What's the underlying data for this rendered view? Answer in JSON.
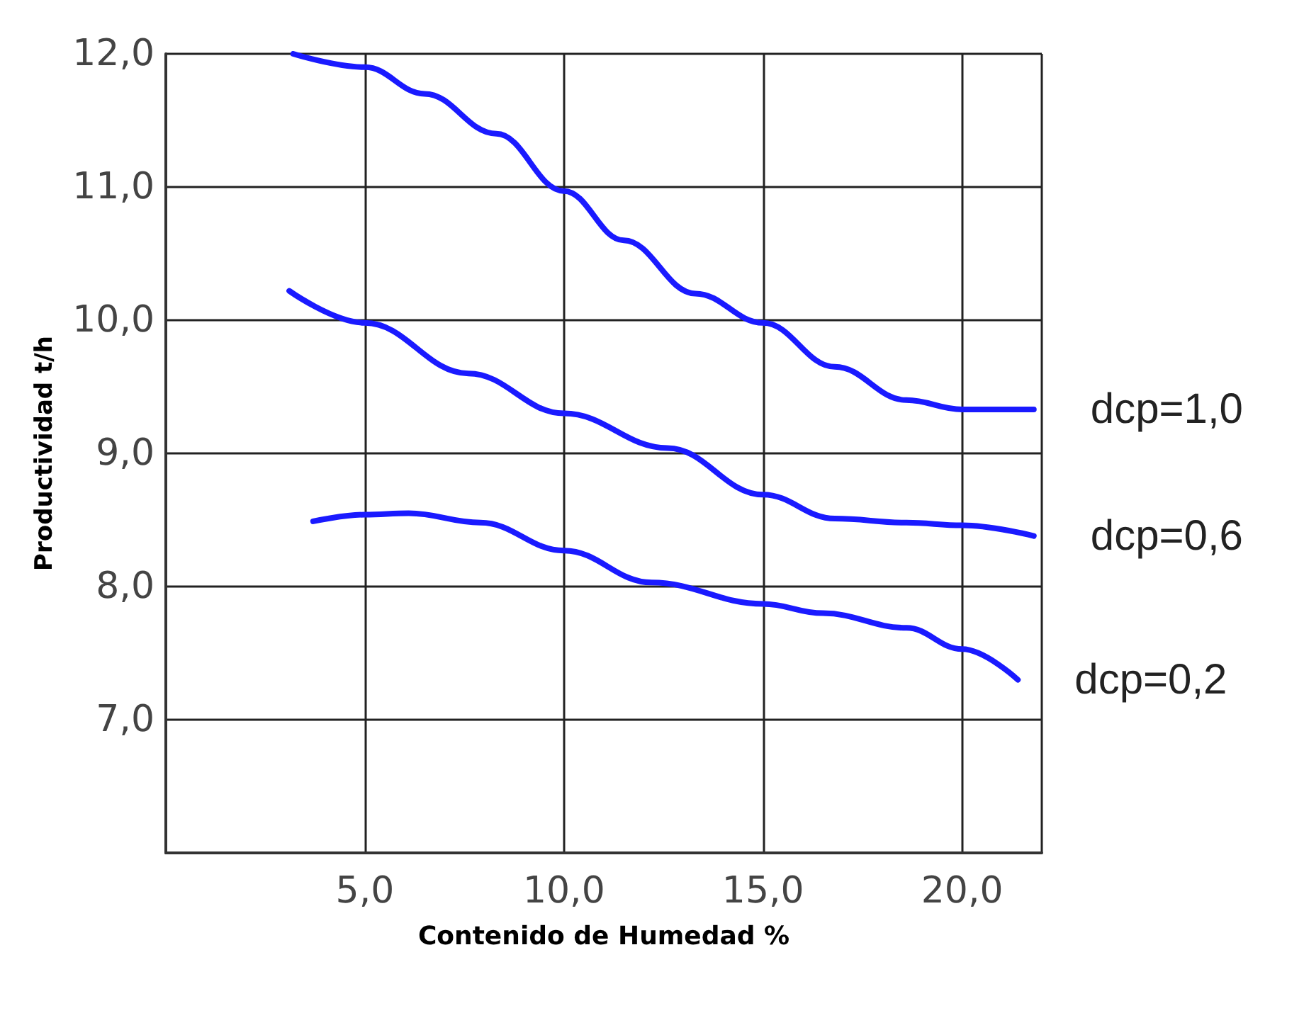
{
  "chart_data": {
    "type": "line",
    "xlabel": "Contenido de Humedad %",
    "ylabel": "Productividad t/h",
    "xlim": [
      0,
      22
    ],
    "ylim": [
      6,
      12
    ],
    "xticks": [
      {
        "value": 5,
        "label": "5,0"
      },
      {
        "value": 10,
        "label": "10,0"
      },
      {
        "value": 15,
        "label": "15,0"
      },
      {
        "value": 20,
        "label": "20,0"
      }
    ],
    "yticks": [
      {
        "value": 7,
        "label": "7,0"
      },
      {
        "value": 8,
        "label": "8,0"
      },
      {
        "value": 9,
        "label": "9,0"
      },
      {
        "value": 10,
        "label": "10,0"
      },
      {
        "value": 11,
        "label": "11,0"
      },
      {
        "value": 12,
        "label": "12,0"
      }
    ],
    "grid": true,
    "legend": false,
    "marker": "none",
    "line_style": "solid",
    "series": [
      {
        "name": "dcp=1,0",
        "color": "#1a1aff",
        "x": [
          3.2,
          5,
          6.5,
          8.3,
          10,
          11.5,
          13.3,
          15,
          16.8,
          18.6,
          20,
          21.8
        ],
        "values": [
          12.0,
          11.9,
          11.7,
          11.4,
          10.97,
          10.6,
          10.2,
          9.98,
          9.65,
          9.4,
          9.33,
          9.33
        ]
      },
      {
        "name": "dcp=0,6",
        "color": "#1a1aff",
        "x": [
          3.1,
          5,
          7.6,
          10,
          12.6,
          15,
          16.8,
          18.6,
          20,
          21.8
        ],
        "values": [
          10.22,
          9.98,
          9.6,
          9.3,
          9.04,
          8.69,
          8.51,
          8.48,
          8.46,
          8.38
        ]
      },
      {
        "name": "dcp=0,2",
        "color": "#1a1aff",
        "x": [
          3.7,
          5,
          6.1,
          7.9,
          10,
          12.2,
          15,
          16.5,
          18.6,
          20,
          21.4
        ],
        "values": [
          8.49,
          8.54,
          8.55,
          8.48,
          8.27,
          8.03,
          7.87,
          7.8,
          7.69,
          7.53,
          7.3
        ]
      }
    ]
  }
}
